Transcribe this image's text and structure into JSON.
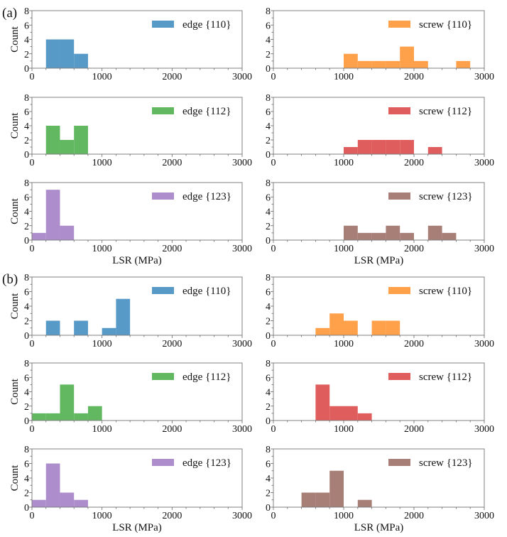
{
  "figure": {
    "panel_labels": [
      "(a)",
      "(b)"
    ]
  },
  "chart_data": [
    {
      "group": "(a)",
      "type": "bar",
      "legend": "edge {110}",
      "color": "#5799c7",
      "ylabel": "Count",
      "xlabel": "",
      "xlim": [
        0,
        3000
      ],
      "ylim": [
        0,
        8
      ],
      "xticks": [
        "0",
        "1000",
        "2000",
        "3000"
      ],
      "yticks": [
        "0",
        "2",
        "4",
        "6",
        "8"
      ],
      "bin_width": 200,
      "legend_position": "top-right",
      "bins": [
        {
          "start": 200,
          "count": 4
        },
        {
          "start": 400,
          "count": 4
        },
        {
          "start": 600,
          "count": 2
        }
      ]
    },
    {
      "group": "(a)",
      "type": "bar",
      "legend": "screw {110}",
      "color": "#ffa04a",
      "ylabel": "",
      "xlabel": "",
      "xlim": [
        0,
        3000
      ],
      "ylim": [
        0,
        8
      ],
      "xticks": [
        "0",
        "1000",
        "2000",
        "3000"
      ],
      "yticks": [
        "0",
        "2",
        "4",
        "6",
        "8"
      ],
      "bin_width": 200,
      "legend_position": "top-right",
      "bins": [
        {
          "start": 1000,
          "count": 2
        },
        {
          "start": 1200,
          "count": 1
        },
        {
          "start": 1400,
          "count": 1
        },
        {
          "start": 1600,
          "count": 1
        },
        {
          "start": 1800,
          "count": 3
        },
        {
          "start": 2000,
          "count": 1
        },
        {
          "start": 2600,
          "count": 1
        }
      ]
    },
    {
      "group": "(a)",
      "type": "bar",
      "legend": "edge {112}",
      "color": "#61b861",
      "ylabel": "Count",
      "xlabel": "",
      "xlim": [
        0,
        3000
      ],
      "ylim": [
        0,
        8
      ],
      "xticks": [
        "0",
        "1000",
        "2000",
        "3000"
      ],
      "yticks": [
        "0",
        "2",
        "4",
        "6",
        "8"
      ],
      "bin_width": 200,
      "legend_position": "top-right",
      "bins": [
        {
          "start": 200,
          "count": 4
        },
        {
          "start": 400,
          "count": 2
        },
        {
          "start": 600,
          "count": 4
        }
      ]
    },
    {
      "group": "(a)",
      "type": "bar",
      "legend": "screw {112}",
      "color": "#e05d5e",
      "ylabel": "",
      "xlabel": "",
      "xlim": [
        0,
        3000
      ],
      "ylim": [
        0,
        8
      ],
      "xticks": [
        "0",
        "1000",
        "2000",
        "3000"
      ],
      "yticks": [
        "0",
        "2",
        "4",
        "6",
        "8"
      ],
      "bin_width": 200,
      "legend_position": "top-right",
      "bins": [
        {
          "start": 1000,
          "count": 1
        },
        {
          "start": 1200,
          "count": 2
        },
        {
          "start": 1400,
          "count": 2
        },
        {
          "start": 1600,
          "count": 2
        },
        {
          "start": 1800,
          "count": 2
        },
        {
          "start": 2200,
          "count": 1
        }
      ]
    },
    {
      "group": "(a)",
      "type": "bar",
      "legend": "edge {123}",
      "color": "#ae8dcd",
      "ylabel": "Count",
      "xlabel": "LSR (MPa)",
      "xlim": [
        0,
        3000
      ],
      "ylim": [
        0,
        8
      ],
      "xticks": [
        "0",
        "1000",
        "2000",
        "3000"
      ],
      "yticks": [
        "0",
        "2",
        "4",
        "6",
        "8"
      ],
      "bin_width": 200,
      "legend_position": "top-right",
      "bins": [
        {
          "start": 0,
          "count": 1
        },
        {
          "start": 200,
          "count": 7
        },
        {
          "start": 400,
          "count": 2
        }
      ]
    },
    {
      "group": "(a)",
      "type": "bar",
      "legend": "screw {123}",
      "color": "#a87f77",
      "ylabel": "",
      "xlabel": "LSR (MPa)",
      "xlim": [
        0,
        3000
      ],
      "ylim": [
        0,
        8
      ],
      "xticks": [
        "0",
        "1000",
        "2000",
        "3000"
      ],
      "yticks": [
        "0",
        "2",
        "4",
        "6",
        "8"
      ],
      "bin_width": 200,
      "legend_position": "top-right",
      "bins": [
        {
          "start": 1000,
          "count": 2
        },
        {
          "start": 1200,
          "count": 1
        },
        {
          "start": 1400,
          "count": 1
        },
        {
          "start": 1600,
          "count": 2
        },
        {
          "start": 1800,
          "count": 1
        },
        {
          "start": 2200,
          "count": 2
        },
        {
          "start": 2400,
          "count": 1
        }
      ]
    },
    {
      "group": "(b)",
      "type": "bar",
      "legend": "edge {110}",
      "color": "#5799c7",
      "ylabel": "Count",
      "xlabel": "",
      "xlim": [
        0,
        3000
      ],
      "ylim": [
        0,
        8
      ],
      "xticks": [
        "0",
        "1000",
        "2000",
        "3000"
      ],
      "yticks": [
        "0",
        "2",
        "4",
        "6",
        "8"
      ],
      "bin_width": 200,
      "legend_position": "top-right",
      "bins": [
        {
          "start": 200,
          "count": 2
        },
        {
          "start": 600,
          "count": 2
        },
        {
          "start": 1000,
          "count": 1
        },
        {
          "start": 1200,
          "count": 5
        }
      ]
    },
    {
      "group": "(b)",
      "type": "bar",
      "legend": "screw {110}",
      "color": "#ffa04a",
      "ylabel": "",
      "xlabel": "",
      "xlim": [
        0,
        3000
      ],
      "ylim": [
        0,
        8
      ],
      "xticks": [
        "0",
        "1000",
        "2000",
        "3000"
      ],
      "yticks": [
        "0",
        "2",
        "4",
        "6",
        "8"
      ],
      "bin_width": 200,
      "legend_position": "top-right",
      "bins": [
        {
          "start": 600,
          "count": 1
        },
        {
          "start": 800,
          "count": 3
        },
        {
          "start": 1000,
          "count": 2
        },
        {
          "start": 1400,
          "count": 2
        },
        {
          "start": 1600,
          "count": 2
        }
      ]
    },
    {
      "group": "(b)",
      "type": "bar",
      "legend": "edge {112}",
      "color": "#61b861",
      "ylabel": "Count",
      "xlabel": "",
      "xlim": [
        0,
        3000
      ],
      "ylim": [
        0,
        8
      ],
      "xticks": [
        "0",
        "1000",
        "2000",
        "3000"
      ],
      "yticks": [
        "0",
        "2",
        "4",
        "6",
        "8"
      ],
      "bin_width": 200,
      "legend_position": "top-right",
      "bins": [
        {
          "start": 0,
          "count": 1
        },
        {
          "start": 200,
          "count": 1
        },
        {
          "start": 400,
          "count": 5
        },
        {
          "start": 600,
          "count": 1
        },
        {
          "start": 800,
          "count": 2
        }
      ]
    },
    {
      "group": "(b)",
      "type": "bar",
      "legend": "screw {112}",
      "color": "#e05d5e",
      "ylabel": "",
      "xlabel": "",
      "xlim": [
        0,
        3000
      ],
      "ylim": [
        0,
        8
      ],
      "xticks": [
        "0",
        "1000",
        "2000",
        "3000"
      ],
      "yticks": [
        "0",
        "2",
        "4",
        "6",
        "8"
      ],
      "bin_width": 200,
      "legend_position": "top-right",
      "bins": [
        {
          "start": 600,
          "count": 5
        },
        {
          "start": 800,
          "count": 2
        },
        {
          "start": 1000,
          "count": 2
        },
        {
          "start": 1200,
          "count": 1
        }
      ]
    },
    {
      "group": "(b)",
      "type": "bar",
      "legend": "edge {123}",
      "color": "#ae8dcd",
      "ylabel": "Count",
      "xlabel": "LSR (MPa)",
      "xlim": [
        0,
        3000
      ],
      "ylim": [
        0,
        8
      ],
      "xticks": [
        "0",
        "1000",
        "2000",
        "3000"
      ],
      "yticks": [
        "0",
        "2",
        "4",
        "6",
        "8"
      ],
      "bin_width": 200,
      "legend_position": "top-right",
      "bins": [
        {
          "start": 0,
          "count": 1
        },
        {
          "start": 200,
          "count": 6
        },
        {
          "start": 400,
          "count": 2
        },
        {
          "start": 600,
          "count": 1
        }
      ]
    },
    {
      "group": "(b)",
      "type": "bar",
      "legend": "screw {123}",
      "color": "#a87f77",
      "ylabel": "",
      "xlabel": "LSR (MPa)",
      "xlim": [
        0,
        3000
      ],
      "ylim": [
        0,
        8
      ],
      "xticks": [
        "0",
        "1000",
        "2000",
        "3000"
      ],
      "yticks": [
        "0",
        "2",
        "4",
        "6",
        "8"
      ],
      "bin_width": 200,
      "legend_position": "top-right",
      "bins": [
        {
          "start": 400,
          "count": 2
        },
        {
          "start": 600,
          "count": 2
        },
        {
          "start": 800,
          "count": 5
        },
        {
          "start": 1200,
          "count": 1
        }
      ]
    }
  ]
}
